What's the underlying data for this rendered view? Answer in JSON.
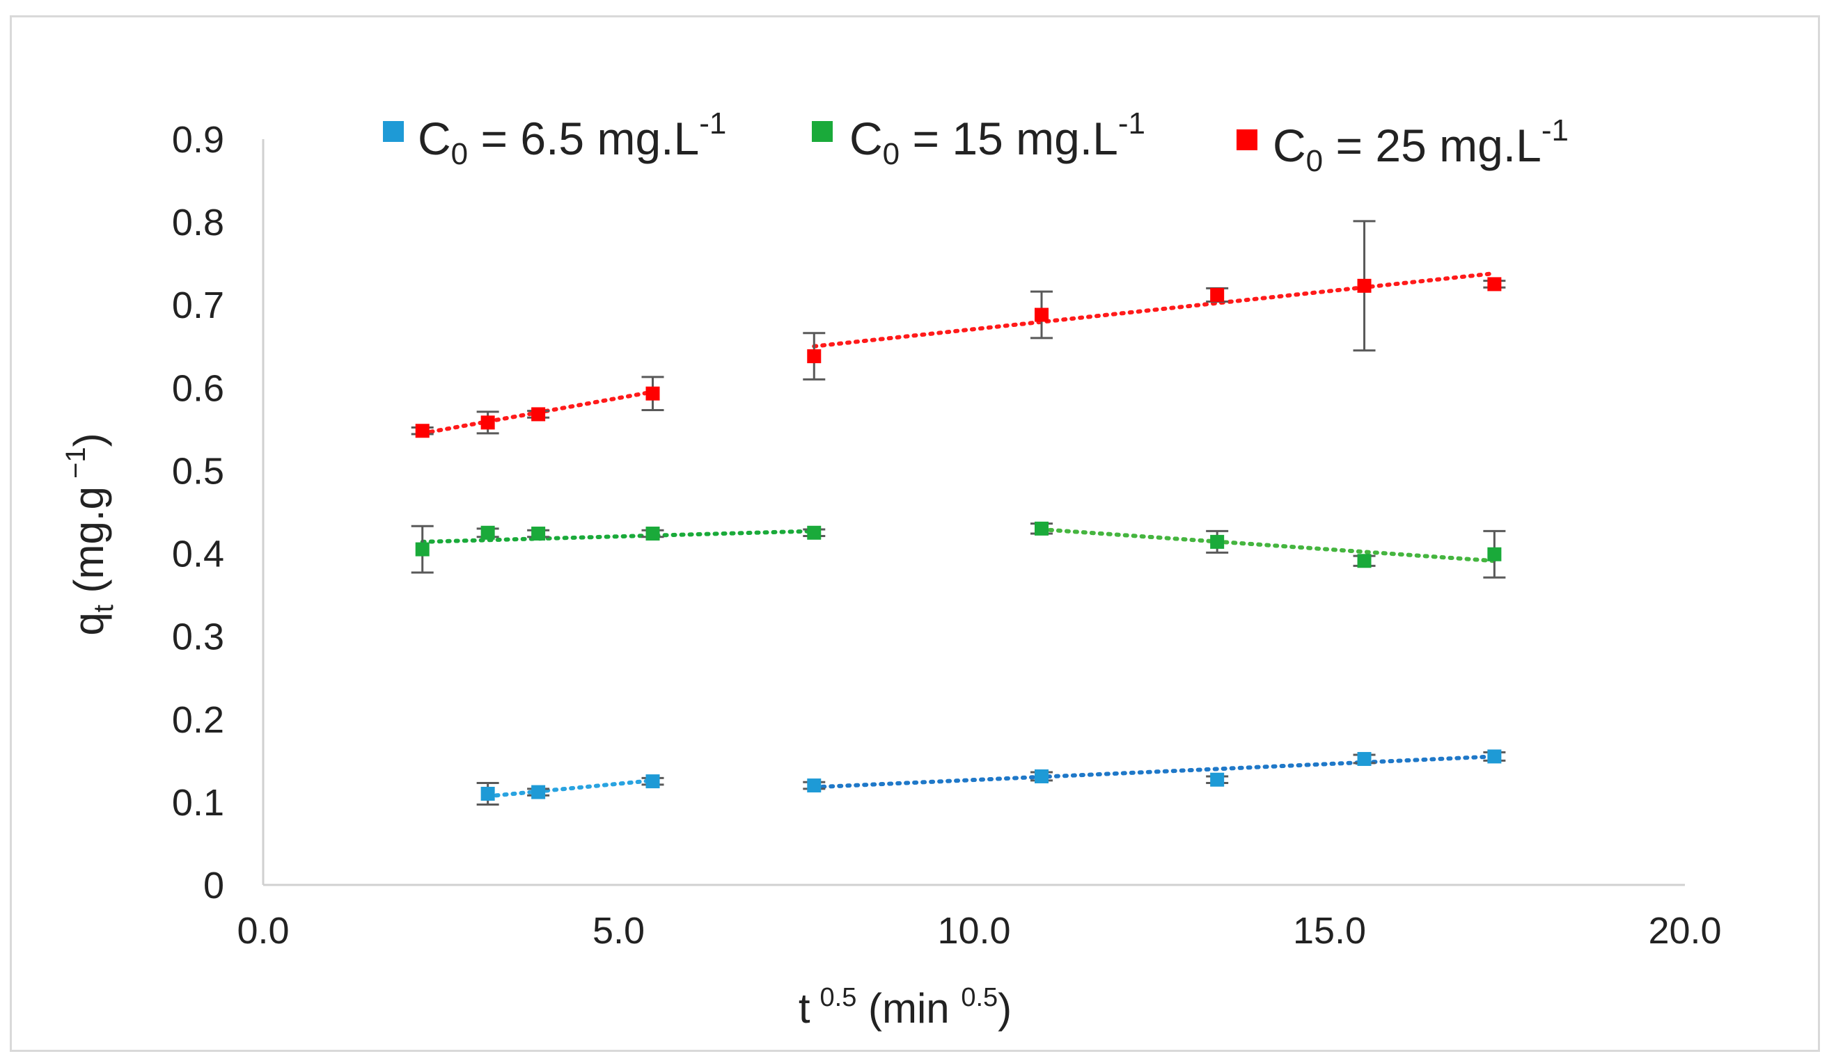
{
  "chart_data": {
    "type": "scatter",
    "title": "",
    "xlabel": "t",
    "xlabel_sup": "0.5",
    "xlabel_unit_open": " (min ",
    "xlabel_unit_sup": "0.5",
    "xlabel_close": ")",
    "ylabel": "q",
    "ylabel_sub": "t",
    "ylabel_unit": " (mg.g",
    "ylabel_sup": " −1",
    "ylabel_close": ")",
    "xlim": [
      0,
      20
    ],
    "ylim": [
      0,
      0.9
    ],
    "xticks": [
      "0.0",
      "5.0",
      "10.0",
      "15.0",
      "20.0"
    ],
    "xtick_values": [
      0,
      5,
      10,
      15,
      20
    ],
    "yticks": [
      "0",
      "0.1",
      "0.2",
      "0.3",
      "0.4",
      "0.5",
      "0.6",
      "0.7",
      "0.8",
      "0.9"
    ],
    "ytick_values": [
      0,
      0.1,
      0.2,
      0.3,
      0.4,
      0.5,
      0.6,
      0.7,
      0.8,
      0.9
    ],
    "grid": false,
    "legend_position": "top",
    "series": [
      {
        "name": "C0 = 6.5 mg.L-1",
        "legend_main": "C",
        "legend_sub": "0",
        "legend_rest": " = 6.5 mg.L",
        "legend_sup": "-1",
        "color": "#1e9ad6",
        "trend_colors": [
          "#29a3e0",
          "#1f78c8"
        ],
        "points": [
          {
            "x": 3.16,
            "y": 0.11,
            "err": 0.013
          },
          {
            "x": 3.87,
            "y": 0.112,
            "err": 0.004
          },
          {
            "x": 5.48,
            "y": 0.125,
            "err": 0.004
          },
          {
            "x": 7.75,
            "y": 0.12,
            "err": 0.004
          },
          {
            "x": 10.95,
            "y": 0.131,
            "err": 0.005
          },
          {
            "x": 13.42,
            "y": 0.127,
            "err": 0.004
          },
          {
            "x": 15.49,
            "y": 0.152,
            "err": 0.005
          },
          {
            "x": 17.32,
            "y": 0.155,
            "err": 0.005
          }
        ],
        "trendlines": [
          {
            "x": [
              3.16,
              5.48
            ],
            "y": [
              0.107,
              0.126
            ]
          },
          {
            "x": [
              7.75,
              17.32
            ],
            "y": [
              0.118,
              0.155
            ]
          }
        ]
      },
      {
        "name": "C0 = 15 mg.L-1",
        "legend_main": "C",
        "legend_sub": "0",
        "legend_rest": " = 15 mg.L",
        "legend_sup": "-1",
        "color": "#1aaa3a",
        "trend_colors": [
          "#1aaa3a",
          "#45b53f"
        ],
        "points": [
          {
            "x": 2.24,
            "y": 0.405,
            "err": 0.028
          },
          {
            "x": 3.16,
            "y": 0.425,
            "err": 0.005
          },
          {
            "x": 3.87,
            "y": 0.424,
            "err": 0.004
          },
          {
            "x": 5.48,
            "y": 0.424,
            "err": 0.004
          },
          {
            "x": 7.75,
            "y": 0.425,
            "err": 0.004
          },
          {
            "x": 10.95,
            "y": 0.43,
            "err": 0.006
          },
          {
            "x": 13.42,
            "y": 0.414,
            "err": 0.013
          },
          {
            "x": 15.49,
            "y": 0.391,
            "err": 0.006
          },
          {
            "x": 17.32,
            "y": 0.399,
            "err": 0.028
          }
        ],
        "trendlines": [
          {
            "x": [
              2.24,
              7.75
            ],
            "y": [
              0.414,
              0.427
            ]
          },
          {
            "x": [
              10.95,
              17.32
            ],
            "y": [
              0.429,
              0.391
            ]
          }
        ]
      },
      {
        "name": "C0 = 25 mg.L-1",
        "legend_main": "C",
        "legend_sub": "0",
        "legend_rest": " = 25 mg.L",
        "legend_sup": "-1",
        "color": "#ff0000",
        "trend_colors": [
          "#ff1a1a",
          "#ff1a1a"
        ],
        "points": [
          {
            "x": 2.24,
            "y": 0.548,
            "err": 0.004
          },
          {
            "x": 3.16,
            "y": 0.558,
            "err": 0.013
          },
          {
            "x": 3.87,
            "y": 0.568,
            "err": 0.004
          },
          {
            "x": 5.48,
            "y": 0.593,
            "err": 0.02
          },
          {
            "x": 7.75,
            "y": 0.638,
            "err": 0.028
          },
          {
            "x": 10.95,
            "y": 0.688,
            "err": 0.028
          },
          {
            "x": 13.42,
            "y": 0.712,
            "err": 0.008
          },
          {
            "x": 15.49,
            "y": 0.723,
            "err": 0.078
          },
          {
            "x": 17.32,
            "y": 0.725,
            "err": 0.004
          }
        ],
        "trendlines": [
          {
            "x": [
              2.24,
              5.48
            ],
            "y": [
              0.545,
              0.595
            ]
          },
          {
            "x": [
              7.75,
              17.32
            ],
            "y": [
              0.65,
              0.738
            ]
          }
        ]
      }
    ]
  }
}
